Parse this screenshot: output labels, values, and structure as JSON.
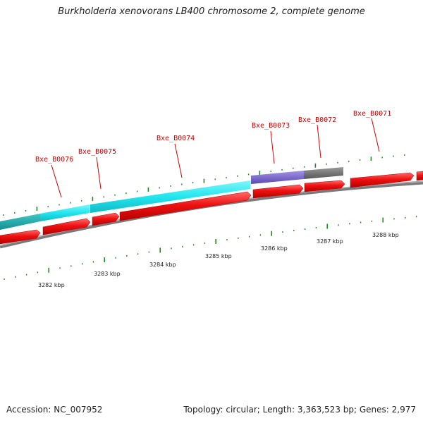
{
  "title": "Burkholderia xenovorans LB400 chromosome 2, complete genome",
  "accession": "Accession: NC_007952",
  "summary": "Topology: circular; Length: 3,363,523 bp; Genes: 2,977",
  "colors": {
    "cds": "#ee1111",
    "gene_cyan": "#22e6ee",
    "gene_purple": "#7a67cc",
    "gene_gray": "#707070",
    "backbone": "#808080",
    "tick": "#1e8c1e",
    "label": "#cc0000"
  },
  "gene_labels": [
    "Bxe_B0076",
    "Bxe_B0075",
    "Bxe_B0074",
    "Bxe_B0073",
    "Bxe_B0072",
    "Bxe_B0071"
  ],
  "scale_labels": [
    "3282 kbp",
    "3283 kbp",
    "3284 kbp",
    "3285 kbp",
    "3286 kbp",
    "3287 kbp",
    "3288 kbp"
  ]
}
